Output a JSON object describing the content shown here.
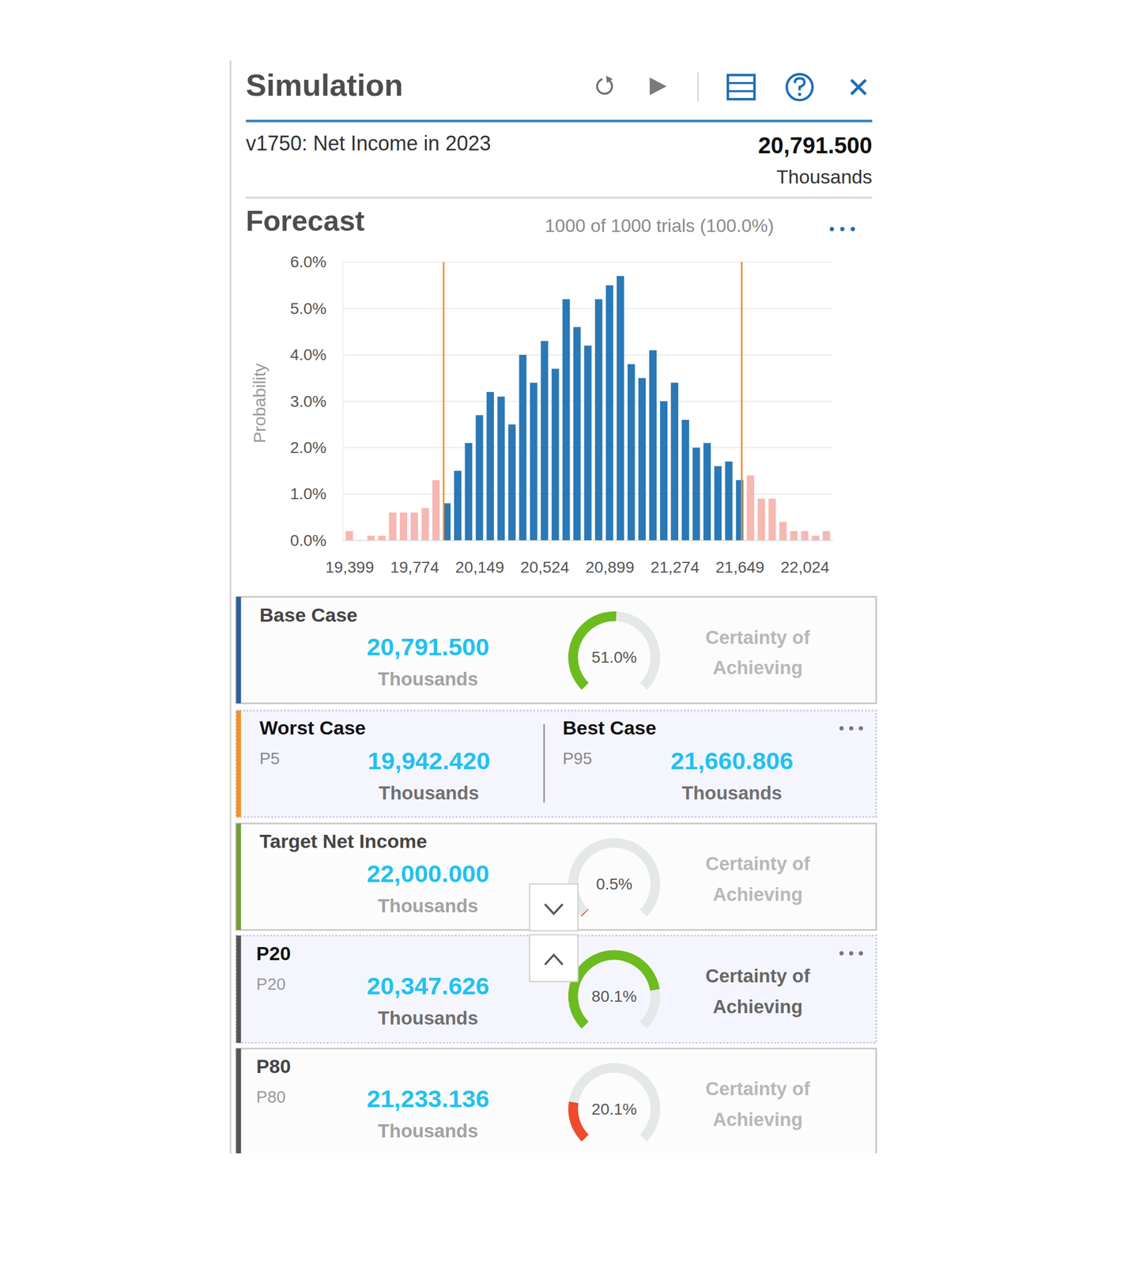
{
  "header": {
    "title": "Simulation"
  },
  "forecast_target": {
    "name": "v1750: Net Income in 2023",
    "value": "20,791.500",
    "units": "Thousands"
  },
  "forecast": {
    "title": "Forecast",
    "trials": "1000 of 1000 trials (100.0%)"
  },
  "chart_data": {
    "type": "histogram",
    "y_label": "Probability",
    "bins": [
      19367.5,
      19430,
      19492.5,
      19555,
      19617.5,
      19680,
      19742.5,
      19805,
      19867.5,
      19930,
      19992.5,
      20055,
      20117.5,
      20180,
      20242.5,
      20305,
      20367.5,
      20430,
      20492.5,
      20555,
      20617.5,
      20680,
      20742.5,
      20805,
      20867.5,
      20930,
      20992.5,
      21055,
      21117.5,
      21180,
      21242.5,
      21305,
      21367.5,
      21430,
      21492.5,
      21555,
      21617.5,
      21680,
      21742.5,
      21805,
      21867.5,
      21930,
      21992.5,
      22055,
      22117.5,
      22180
    ],
    "values": [
      0.2,
      0,
      0.1,
      0.1,
      0.6,
      0.6,
      0.6,
      0.7,
      1.3,
      0.8,
      1.5,
      2.1,
      2.7,
      3.2,
      3.1,
      2.5,
      4.0,
      3.4,
      4.3,
      3.7,
      5.2,
      4.6,
      4.2,
      5.2,
      5.5,
      5.7,
      3.8,
      3.5,
      4.1,
      3.0,
      3.4,
      2.6,
      2.0,
      2.1,
      1.6,
      1.7,
      1.3,
      1.4,
      0.9,
      0.9,
      0.4,
      0.2,
      0.2,
      0.1,
      0.2
    ],
    "colors": [
      "#f7b7b2",
      "#f7b7b2",
      "#f7b7b2",
      "#f7b7b2",
      "#f7b7b2",
      "#f7b7b2",
      "#f7b7b2",
      "#f7b7b2",
      "#f7b7b2",
      "#2a78b6",
      "#2a78b6",
      "#2a78b6",
      "#2a78b6",
      "#2a78b6",
      "#2a78b6",
      "#2a78b6",
      "#2a78b6",
      "#2a78b6",
      "#2a78b6",
      "#2a78b6",
      "#2a78b6",
      "#2a78b6",
      "#2a78b6",
      "#2a78b6",
      "#2a78b6",
      "#2a78b6",
      "#2a78b6",
      "#2a78b6",
      "#2a78b6",
      "#2a78b6",
      "#2a78b6",
      "#2a78b6",
      "#2a78b6",
      "#2a78b6",
      "#2a78b6",
      "#2a78b6",
      "#2a78b6",
      "#f7b7b2",
      "#f7b7b2",
      "#f7b7b2",
      "#f7b7b2",
      "#f7b7b2",
      "#f7b7b2",
      "#f7b7b2",
      "#f7b7b2"
    ],
    "reference_lines": {
      "values": [
        19942.42,
        21660.806
      ],
      "color": "#f0902c"
    },
    "xlim": [
      19360,
      22185
    ],
    "xticks": [
      {
        "value": 19399,
        "label": "19,399"
      },
      {
        "value": 19774,
        "label": "19,774"
      },
      {
        "value": 20149,
        "label": "20,149"
      },
      {
        "value": 20524,
        "label": "20,524"
      },
      {
        "value": 20899,
        "label": "20,899"
      },
      {
        "value": 21274,
        "label": "21,274"
      },
      {
        "value": 21649,
        "label": "21,649"
      },
      {
        "value": 22024,
        "label": "22,024"
      }
    ],
    "ylim": [
      0,
      6
    ],
    "yticks": [
      {
        "value": 0,
        "label": "0.0%"
      },
      {
        "value": 1,
        "label": "1.0%"
      },
      {
        "value": 2,
        "label": "2.0%"
      },
      {
        "value": 3,
        "label": "3.0%"
      },
      {
        "value": 4,
        "label": "4.0%"
      },
      {
        "value": 5,
        "label": "5.0%"
      },
      {
        "value": 6,
        "label": "6.0%"
      }
    ],
    "grid": true
  },
  "certainty_scale": [
    0,
    100
  ],
  "cards": [
    {
      "title": "Base Case",
      "value": "20,791.500",
      "units": "Thousands",
      "certainty": {
        "value": 51.0,
        "label": "51.0%",
        "color": "#6cbb1f"
      },
      "certainty_text": [
        "Certainty of",
        "Achieving"
      ]
    },
    {
      "worst": {
        "title": "Worst Case",
        "percentile": "P5",
        "value": "19,942.420",
        "units": "Thousands"
      },
      "best": {
        "title": "Best Case",
        "percentile": "P95",
        "value": "21,660.806",
        "units": "Thousands"
      }
    },
    {
      "title": "Target Net Income",
      "value": "22,000.000",
      "units": "Thousands",
      "certainty": {
        "value": 0.5,
        "label": "0.5%",
        "color": "#ef4a2c"
      },
      "certainty_text": [
        "Certainty of",
        "Achieving"
      ]
    },
    {
      "title": "P20",
      "subtitle": "P20",
      "value": "20,347.626",
      "units": "Thousands",
      "certainty": {
        "value": 80.1,
        "label": "80.1%",
        "color": "#6cbb1f"
      },
      "certainty_text": [
        "Certainty of",
        "Achieving"
      ]
    },
    {
      "title": "P80",
      "subtitle": "P80",
      "value": "21,233.136",
      "units": "Thousands",
      "certainty": {
        "value": 20.1,
        "label": "20.1%",
        "color": "#ef4a2c"
      },
      "certainty_text": [
        "Certainty of",
        "Achieving"
      ]
    }
  ]
}
